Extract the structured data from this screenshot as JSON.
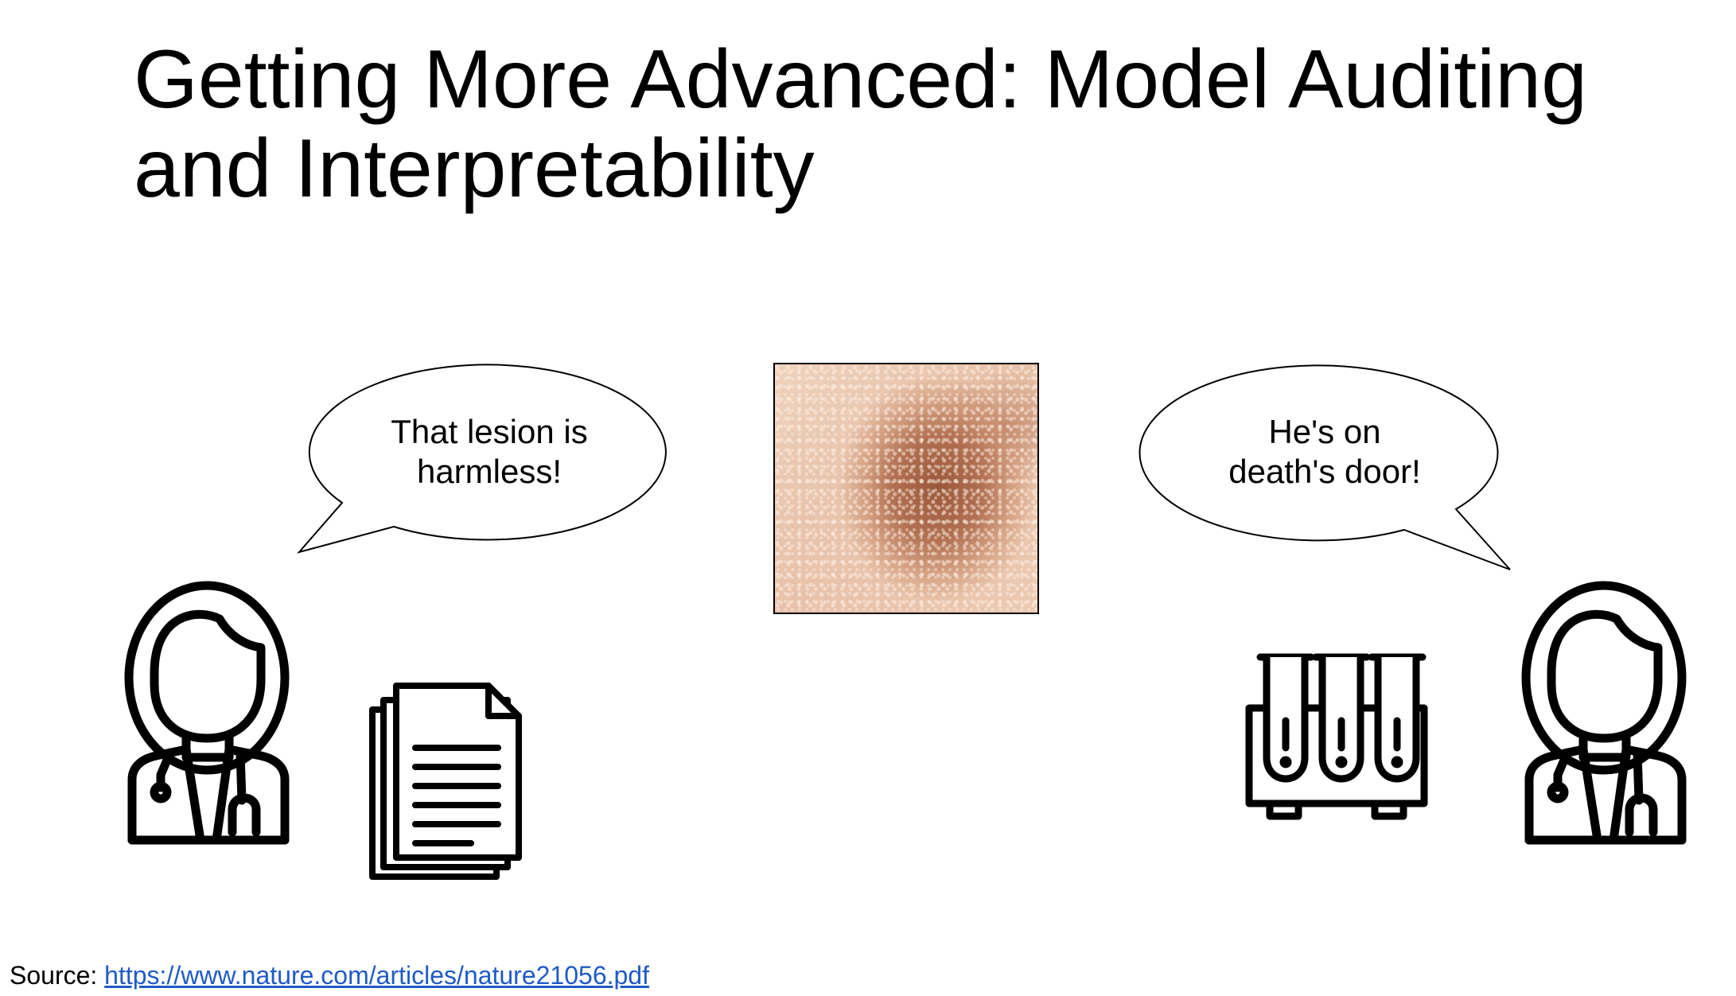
{
  "title": {
    "line1": "Getting More Advanced: Model Auditing",
    "line2": "and Interpretability"
  },
  "left_bubble": {
    "line1": "That lesion is",
    "line2": "harmless!"
  },
  "right_bubble": {
    "line1": "He's on",
    "line2": "death's door!"
  },
  "source": {
    "label": "Source: ",
    "link": "https://www.nature.com/articles/nature21056.pdf"
  },
  "icons": {
    "left_doctor": "female-doctor-icon",
    "documents": "documents-icon",
    "test_tubes": "test-tubes-icon",
    "right_doctor": "female-doctor-icon"
  },
  "colors": {
    "link": "#1f5bc7",
    "lesion_dark": "#965234",
    "skin": "#efd2bd"
  }
}
